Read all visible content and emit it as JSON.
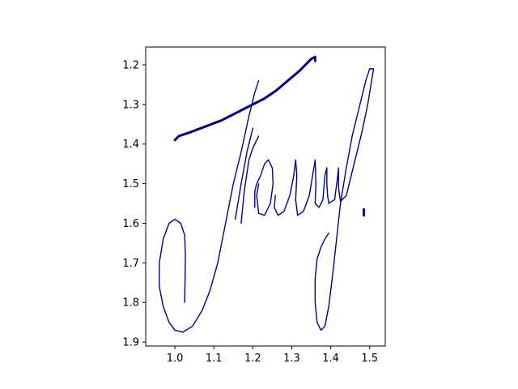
{
  "chart_data": {
    "type": "line",
    "title": "",
    "xlabel": "",
    "ylabel": "",
    "xlim": [
      0.925,
      1.54
    ],
    "ylim": [
      1.91,
      1.155
    ],
    "y_inverted": true,
    "grid": false,
    "legend": "none",
    "color": "#00008b",
    "xticks": [
      {
        "value": 1.0,
        "label": "1.0"
      },
      {
        "value": 1.1,
        "label": "1.1"
      },
      {
        "value": 1.2,
        "label": "1.2"
      },
      {
        "value": 1.3,
        "label": "1.3"
      },
      {
        "value": 1.4,
        "label": "1.4"
      },
      {
        "value": 1.5,
        "label": "1.5"
      }
    ],
    "yticks": [
      {
        "value": 1.2,
        "label": "1.2"
      },
      {
        "value": 1.3,
        "label": "1.3"
      },
      {
        "value": 1.4,
        "label": "1.4"
      },
      {
        "value": 1.5,
        "label": "1.5"
      },
      {
        "value": 1.6,
        "label": "1.6"
      },
      {
        "value": 1.7,
        "label": "1.7"
      },
      {
        "value": 1.8,
        "label": "1.8"
      },
      {
        "value": 1.9,
        "label": "1.9"
      }
    ],
    "series": [
      {
        "weight": "heavy",
        "points": [
          [
            1.0,
            1.39
          ],
          [
            1.01,
            1.38
          ],
          [
            1.04,
            1.37
          ],
          [
            1.08,
            1.355
          ],
          [
            1.12,
            1.34
          ],
          [
            1.16,
            1.32
          ],
          [
            1.2,
            1.3
          ],
          [
            1.23,
            1.285
          ],
          [
            1.26,
            1.265
          ],
          [
            1.29,
            1.24
          ],
          [
            1.32,
            1.215
          ],
          [
            1.34,
            1.195
          ],
          [
            1.35,
            1.185
          ],
          [
            1.36,
            1.18
          ],
          [
            1.36,
            1.19
          ]
        ]
      },
      {
        "weight": "light",
        "points": [
          [
            1.025,
            1.8
          ],
          [
            1.026,
            1.75
          ],
          [
            1.027,
            1.68
          ],
          [
            1.025,
            1.63
          ],
          [
            1.015,
            1.6
          ],
          [
            1.0,
            1.59
          ],
          [
            0.985,
            1.6
          ],
          [
            0.97,
            1.64
          ],
          [
            0.96,
            1.7
          ],
          [
            0.96,
            1.76
          ],
          [
            0.97,
            1.81
          ],
          [
            0.985,
            1.85
          ],
          [
            1.0,
            1.87
          ],
          [
            1.02,
            1.875
          ],
          [
            1.045,
            1.86
          ],
          [
            1.07,
            1.82
          ],
          [
            1.09,
            1.77
          ],
          [
            1.11,
            1.7
          ],
          [
            1.13,
            1.6
          ],
          [
            1.15,
            1.5
          ],
          [
            1.17,
            1.42
          ],
          [
            1.19,
            1.33
          ],
          [
            1.205,
            1.27
          ],
          [
            1.215,
            1.24
          ]
        ]
      },
      {
        "weight": "light",
        "points": [
          [
            1.155,
            1.59
          ],
          [
            1.17,
            1.5
          ],
          [
            1.185,
            1.42
          ],
          [
            1.2,
            1.36
          ]
        ]
      },
      {
        "weight": "light",
        "points": [
          [
            1.17,
            1.6
          ],
          [
            1.178,
            1.52
          ],
          [
            1.19,
            1.44
          ],
          [
            1.2,
            1.41
          ],
          [
            1.215,
            1.38
          ]
        ]
      },
      {
        "weight": "light",
        "points": [
          [
            1.205,
            1.56
          ],
          [
            1.205,
            1.52
          ],
          [
            1.21,
            1.5
          ],
          [
            1.22,
            1.48
          ],
          [
            1.23,
            1.45
          ],
          [
            1.24,
            1.44
          ],
          [
            1.25,
            1.46
          ],
          [
            1.252,
            1.5
          ],
          [
            1.245,
            1.55
          ],
          [
            1.23,
            1.58
          ],
          [
            1.215,
            1.575
          ],
          [
            1.21,
            1.53
          ],
          [
            1.215,
            1.5
          ]
        ]
      },
      {
        "weight": "light",
        "points": [
          [
            1.258,
            1.53
          ],
          [
            1.255,
            1.56
          ],
          [
            1.265,
            1.58
          ],
          [
            1.28,
            1.57
          ],
          [
            1.295,
            1.53
          ],
          [
            1.305,
            1.48
          ],
          [
            1.31,
            1.44
          ],
          [
            1.313,
            1.48
          ],
          [
            1.31,
            1.54
          ],
          [
            1.315,
            1.58
          ],
          [
            1.33,
            1.57
          ],
          [
            1.345,
            1.53
          ],
          [
            1.355,
            1.47
          ],
          [
            1.36,
            1.44
          ],
          [
            1.362,
            1.5
          ],
          [
            1.36,
            1.55
          ],
          [
            1.37,
            1.56
          ],
          [
            1.38,
            1.54
          ],
          [
            1.385,
            1.48
          ],
          [
            1.39,
            1.46
          ],
          [
            1.39,
            1.5
          ],
          [
            1.392,
            1.53
          ],
          [
            1.395,
            1.55
          ],
          [
            1.41,
            1.54
          ],
          [
            1.418,
            1.48
          ],
          [
            1.42,
            1.46
          ],
          [
            1.42,
            1.51
          ],
          [
            1.425,
            1.545
          ],
          [
            1.44,
            1.53
          ],
          [
            1.46,
            1.45
          ],
          [
            1.48,
            1.37
          ],
          [
            1.495,
            1.3
          ],
          [
            1.505,
            1.24
          ],
          [
            1.51,
            1.21
          ],
          [
            1.5,
            1.21
          ],
          [
            1.49,
            1.24
          ],
          [
            1.475,
            1.3
          ],
          [
            1.455,
            1.38
          ],
          [
            1.44,
            1.46
          ],
          [
            1.425,
            1.55
          ],
          [
            1.415,
            1.64
          ],
          [
            1.405,
            1.73
          ],
          [
            1.395,
            1.81
          ],
          [
            1.385,
            1.86
          ],
          [
            1.375,
            1.87
          ],
          [
            1.365,
            1.85
          ],
          [
            1.36,
            1.8
          ],
          [
            1.36,
            1.74
          ],
          [
            1.365,
            1.69
          ],
          [
            1.375,
            1.66
          ],
          [
            1.385,
            1.64
          ],
          [
            1.395,
            1.625
          ]
        ]
      },
      {
        "weight": "heavy",
        "points": [
          [
            1.485,
            1.565
          ],
          [
            1.485,
            1.58
          ]
        ]
      }
    ]
  }
}
